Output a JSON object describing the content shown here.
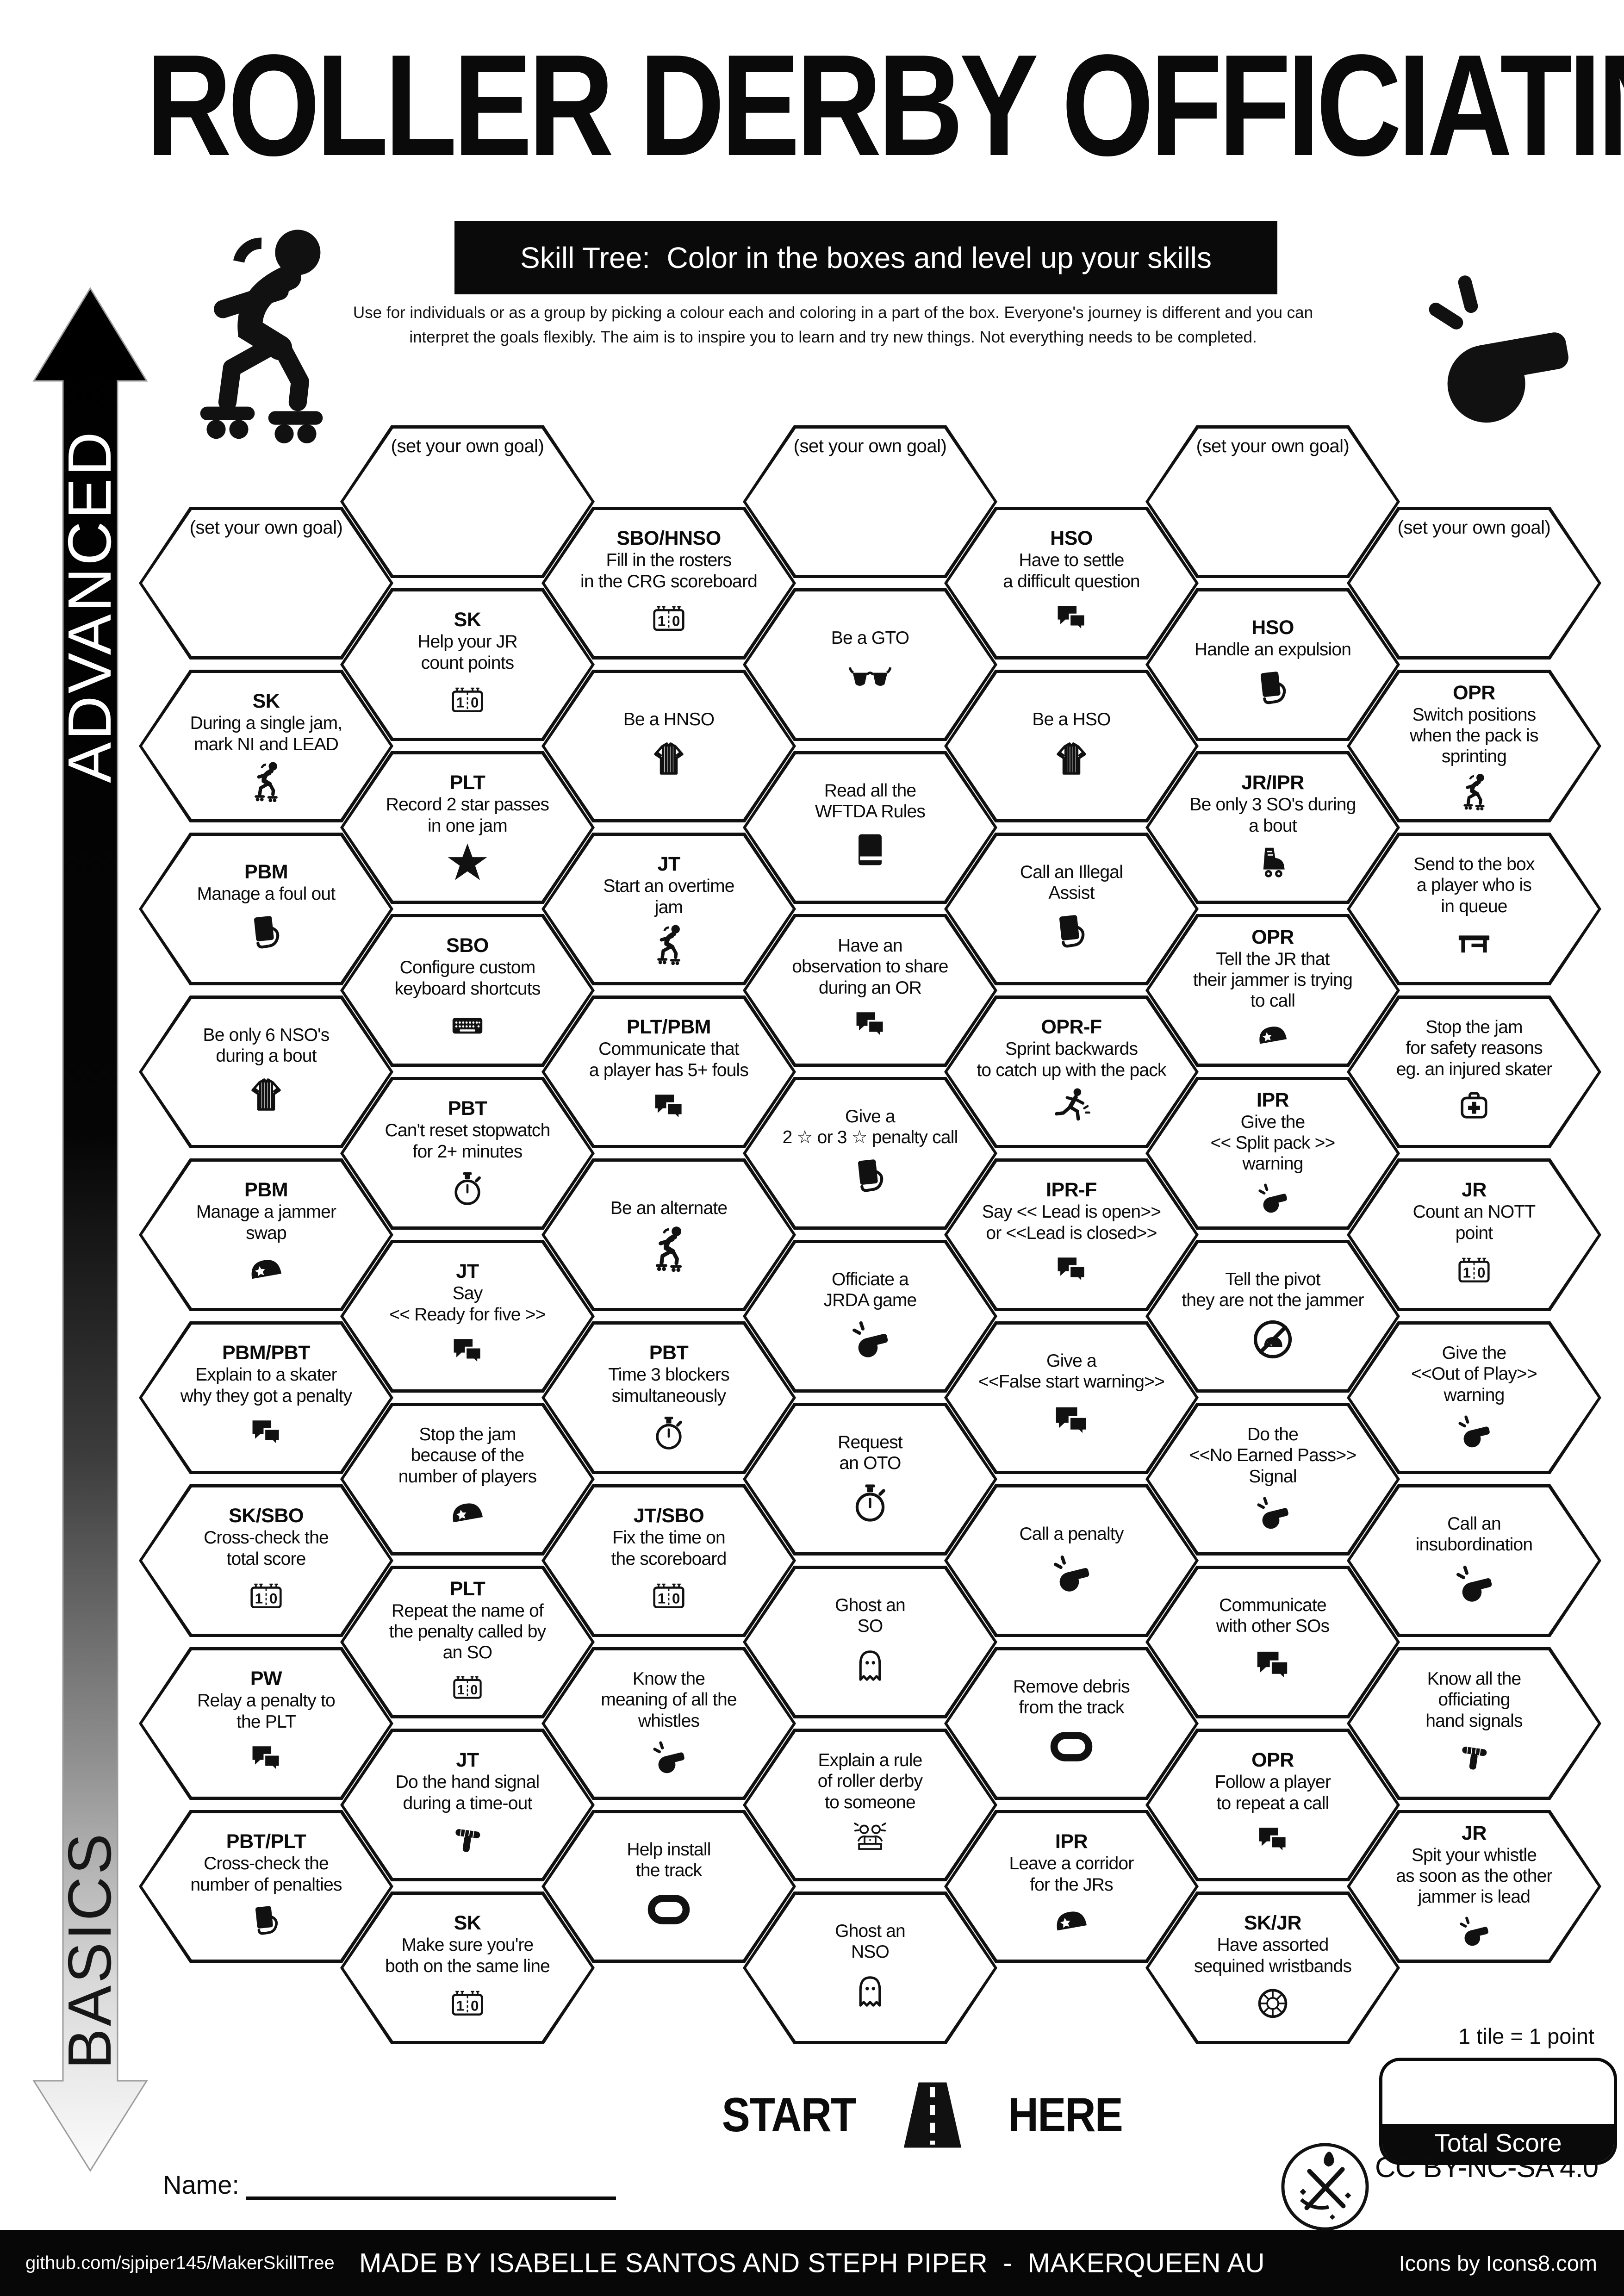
{
  "header": {
    "title": "ROLLER DERBY OFFICIATING",
    "subtitle": "Skill Tree:  Color in the boxes and level up your skills",
    "desc1": "Use for individuals or as a group by picking a colour each and coloring in a part of the box.  Everyone's journey is different and you can",
    "desc2": "interpret the goals flexibly.  The aim is to inspire you to learn and try new things. Not everything needs to be completed."
  },
  "axis": {
    "advanced": "ADVANCED",
    "basics": "BASICS"
  },
  "goal_text": "(set your own goal)",
  "colors": {
    "ink": "#0a0a0a",
    "paper": "#ffffff"
  },
  "columns": [
    {
      "hexes": [
        {
          "goal": true
        },
        {
          "tag": "SK",
          "lines": [
            "During a single jam,",
            "mark NI and LEAD"
          ],
          "icon": "skater"
        },
        {
          "tag": "PBM",
          "lines": [
            "Manage a foul out"
          ],
          "icon": "cardhand"
        },
        {
          "lines": [
            "Be only 6 NSO's",
            "during a bout"
          ],
          "icon": "shirt"
        },
        {
          "tag": "PBM",
          "lines": [
            "Manage a jammer",
            "swap"
          ],
          "icon": "helmet"
        },
        {
          "tag": "PBM/PBT",
          "lines": [
            "Explain to a skater",
            "why they got a penalty"
          ],
          "icon": "chat"
        },
        {
          "tag": "SK/SBO",
          "lines": [
            "Cross-check the",
            "total score"
          ],
          "icon": "scoreboard"
        },
        {
          "tag": "PW",
          "lines": [
            "Relay a penalty to",
            "the PLT"
          ],
          "icon": "chat"
        },
        {
          "tag": "PBT/PLT",
          "lines": [
            "Cross-check the",
            "number of penalties"
          ],
          "icon": "cardhand"
        }
      ]
    },
    {
      "hexes": [
        {
          "goal": true
        },
        {
          "tag": "SK",
          "lines": [
            "Help your JR",
            "count points"
          ],
          "icon": "scoreboard"
        },
        {
          "tag": "PLT",
          "lines": [
            "Record 2 star passes",
            "in one jam"
          ],
          "icon": "star"
        },
        {
          "tag": "SBO",
          "lines": [
            "Configure custom",
            "keyboard shortcuts"
          ],
          "icon": "keyboard"
        },
        {
          "tag": "PBT",
          "lines": [
            "Can't reset stopwatch",
            "for 2+ minutes"
          ],
          "icon": "stopwatch"
        },
        {
          "tag": "JT",
          "lines": [
            "Say",
            "<< Ready for five >>"
          ],
          "icon": "chat"
        },
        {
          "lines": [
            "Stop the jam",
            "because of the",
            "number of players"
          ],
          "icon": "helmet"
        },
        {
          "tag": "PLT",
          "lines": [
            "Repeat the name of",
            "the penalty called by",
            "an SO"
          ],
          "icon": "scoreboard"
        },
        {
          "tag": "JT",
          "lines": [
            "Do the hand signal",
            "during a time-out"
          ],
          "icon": "hand"
        },
        {
          "tag": "SK",
          "lines": [
            "Make sure you're",
            "both on the same line"
          ],
          "icon": "scoreboard"
        }
      ]
    },
    {
      "hexes": [
        {
          "tag": "SBO/HNSO",
          "lines": [
            "Fill in the rosters",
            "in the CRG scoreboard"
          ],
          "icon": "scoreboard"
        },
        {
          "lines": [
            "Be a HNSO"
          ],
          "icon": "shirt"
        },
        {
          "tag": "JT",
          "lines": [
            "Start an overtime",
            "jam"
          ],
          "icon": "skater"
        },
        {
          "tag": "PLT/PBM",
          "lines": [
            "Communicate that",
            "a player has 5+ fouls"
          ],
          "icon": "chat"
        },
        {
          "lines": [
            "Be an alternate"
          ],
          "icon": "skater"
        },
        {
          "tag": "PBT",
          "lines": [
            "Time 3 blockers",
            "simultaneously"
          ],
          "icon": "stopwatch"
        },
        {
          "tag": "JT/SBO",
          "lines": [
            "Fix the time on",
            "the scoreboard"
          ],
          "icon": "scoreboard"
        },
        {
          "lines": [
            "Know the",
            "meaning of all the",
            "whistles"
          ],
          "icon": "whistle"
        },
        {
          "lines": [
            "Help install",
            "the track"
          ],
          "icon": "track"
        }
      ]
    },
    {
      "hexes": [
        {
          "goal": true
        },
        {
          "lines": [
            "Be a GTO"
          ],
          "icon": "glasses"
        },
        {
          "lines": [
            "Read all the",
            "WFTDA Rules"
          ],
          "icon": "book"
        },
        {
          "lines": [
            "Have an",
            "observation to share",
            "during an OR"
          ],
          "icon": "chat"
        },
        {
          "lines": [
            "Give a",
            "2 ☆ or 3 ☆  penalty call"
          ],
          "icon": "cardhand"
        },
        {
          "lines": [
            "Officiate a",
            "JRDA game"
          ],
          "icon": "whistle"
        },
        {
          "lines": [
            "Request",
            "an OTO"
          ],
          "icon": "stopwatch"
        },
        {
          "lines": [
            "Ghost an",
            "SO"
          ],
          "icon": "ghost"
        },
        {
          "lines": [
            "Explain a rule",
            "of roller derby",
            "to someone"
          ],
          "icon": "laptop"
        },
        {
          "lines": [
            "Ghost an",
            "NSO"
          ],
          "icon": "ghost"
        }
      ]
    },
    {
      "hexes": [
        {
          "tag": "HSO",
          "lines": [
            "Have to settle",
            "a difficult question"
          ],
          "icon": "chat"
        },
        {
          "lines": [
            "Be a HSO"
          ],
          "icon": "shirt"
        },
        {
          "lines": [
            "Call an Illegal",
            "Assist"
          ],
          "icon": "cardhand"
        },
        {
          "tag": "OPR-F",
          "lines": [
            "Sprint backwards",
            "to catch up with the pack"
          ],
          "icon": "runner"
        },
        {
          "tag": "IPR-F",
          "lines": [
            "Say << Lead is open>>",
            "or <<Lead is closed>>"
          ],
          "icon": "chat"
        },
        {
          "lines": [
            "Give a",
            "<<False start warning>>"
          ],
          "icon": "chat"
        },
        {
          "lines": [
            "Call a penalty"
          ],
          "icon": "whistle"
        },
        {
          "lines": [
            "Remove debris",
            "from the track"
          ],
          "icon": "track"
        },
        {
          "tag": "IPR",
          "lines": [
            "Leave a corridor",
            "for the JRs"
          ],
          "icon": "helmet"
        }
      ]
    },
    {
      "hexes": [
        {
          "goal": true
        },
        {
          "tag": "HSO",
          "lines": [
            "Handle an expulsion"
          ],
          "icon": "cardhand"
        },
        {
          "tag": "JR/IPR",
          "lines": [
            "Be only 3 SO's during",
            "a bout"
          ],
          "icon": "skate"
        },
        {
          "tag": "OPR",
          "lines": [
            "Tell the JR that",
            "their jammer is trying",
            "to call"
          ],
          "icon": "helmet"
        },
        {
          "tag": "IPR",
          "lines": [
            "Give the",
            "<< Split pack >>",
            "warning"
          ],
          "icon": "whistle"
        },
        {
          "lines": [
            "Tell the pivot",
            "they are not the jammer"
          ],
          "icon": "helmetno"
        },
        {
          "lines": [
            "Do the",
            "<<No Earned Pass>>",
            "Signal"
          ],
          "icon": "whistle"
        },
        {
          "lines": [
            "Communicate",
            "with other SOs"
          ],
          "icon": "chat"
        },
        {
          "tag": "OPR",
          "lines": [
            "Follow a player",
            "to repeat a call"
          ],
          "icon": "chat"
        },
        {
          "tag": "SK/JR",
          "lines": [
            "Have assorted",
            "sequined wristbands"
          ],
          "icon": "gem"
        }
      ]
    },
    {
      "hexes": [
        {
          "goal": true
        },
        {
          "tag": "OPR",
          "lines": [
            "Switch positions",
            "when the pack is",
            "sprinting"
          ],
          "icon": "skater"
        },
        {
          "lines": [
            "Send to the box",
            "a player who is",
            "in queue"
          ],
          "icon": "bench"
        },
        {
          "lines": [
            "Stop the jam",
            "for safety reasons",
            "eg. an injured skater"
          ],
          "icon": "firstaid"
        },
        {
          "tag": "JR",
          "lines": [
            "Count an NOTT",
            "point"
          ],
          "icon": "scoreboard"
        },
        {
          "lines": [
            "Give the",
            "<<Out of Play>>",
            "warning"
          ],
          "icon": "whistle"
        },
        {
          "lines": [
            "Call an",
            "insubordination"
          ],
          "icon": "whistle"
        },
        {
          "lines": [
            "Know all the",
            "officiating",
            "hand signals"
          ],
          "icon": "hand"
        },
        {
          "tag": "JR",
          "lines": [
            "Spit your whistle",
            "as soon as the other",
            "jammer is lead"
          ],
          "icon": "whistle"
        }
      ]
    }
  ],
  "start": {
    "word1": "START",
    "word2": "HERE"
  },
  "name_label": "Name:",
  "score": {
    "note": "1 tile = 1 point",
    "band": "Total Score"
  },
  "license": "CC BY-NC-SA 4.0",
  "footer": {
    "left": "github.com/sjpiper145/MakerSkillTree",
    "center": "MADE BY ISABELLE SANTOS AND STEPH PIPER  -  MAKERQUEEN AU",
    "right": "Icons by Icons8.com"
  }
}
